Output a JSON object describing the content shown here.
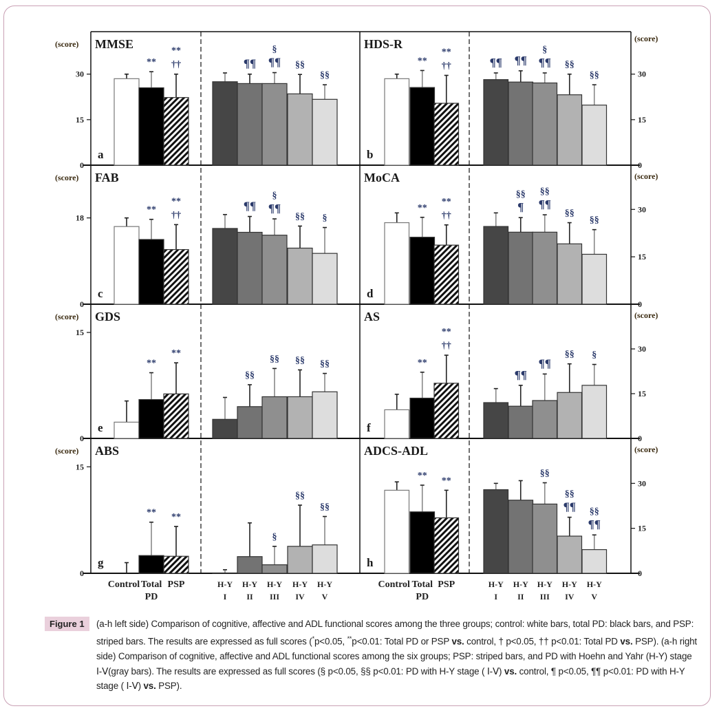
{
  "figure": {
    "y_unit_label": "(score)",
    "groups": [
      [
        "Control"
      ],
      [
        "Total",
        "PD"
      ],
      [
        "PSP"
      ],
      [
        "H-Y",
        "I"
      ],
      [
        "H-Y",
        "II"
      ],
      [
        "H-Y",
        "III"
      ],
      [
        "H-Y",
        "IV"
      ],
      [
        "H-Y",
        "V"
      ]
    ],
    "colors": [
      "#ffffff",
      "#000000",
      "striped",
      "#464646",
      "#737373",
      "#8f8f8f",
      "#b2b2b2",
      "#dddddd"
    ]
  },
  "chart_data": [
    {
      "type": "bar",
      "panel": "a",
      "title": "MMSE",
      "ylim": [
        0,
        44
      ],
      "yticks": [
        0,
        15,
        30
      ],
      "values": [
        28.5,
        25.5,
        22.3,
        27.5,
        26.9,
        26.9,
        23.5,
        21.7
      ],
      "error_upper": [
        30,
        30.8,
        30,
        30.4,
        30,
        30.5,
        29.9,
        26.5
      ],
      "annotations": [
        [],
        [
          "**"
        ],
        [
          "**",
          "††"
        ],
        [],
        [
          "¶¶"
        ],
        [
          "§",
          "¶¶"
        ],
        [
          "§§"
        ],
        [
          "§§"
        ]
      ]
    },
    {
      "type": "bar",
      "panel": "b",
      "title": "HDS-R",
      "ylim": [
        0,
        44
      ],
      "yticks": [
        0,
        15,
        30
      ],
      "values": [
        28.5,
        25.6,
        20.4,
        28.2,
        27.4,
        27.1,
        23.2,
        19.8
      ],
      "error_upper": [
        30,
        31.2,
        29.6,
        30.4,
        31.1,
        30.4,
        30,
        26.5
      ],
      "annotations": [
        [],
        [
          "**"
        ],
        [
          "**",
          "††"
        ],
        [
          "¶¶"
        ],
        [
          "¶¶"
        ],
        [
          "§",
          "¶¶"
        ],
        [
          "§§"
        ],
        [
          "§§"
        ]
      ]
    },
    {
      "type": "bar",
      "panel": "c",
      "title": "FAB",
      "ylim": [
        0,
        29
      ],
      "yticks": [
        0,
        18
      ],
      "values": [
        16.2,
        13.5,
        11.4,
        15.8,
        15,
        14.4,
        11.7,
        10.6
      ],
      "error_upper": [
        18,
        17.7,
        16.6,
        18.7,
        18.3,
        17.8,
        16.3,
        16
      ],
      "annotations": [
        [],
        [
          "**"
        ],
        [
          "**",
          "††"
        ],
        [],
        [
          "¶¶"
        ],
        [
          "§",
          "¶¶"
        ],
        [
          "§§"
        ],
        [
          "§"
        ]
      ]
    },
    {
      "type": "bar",
      "panel": "d",
      "title": "MoCA",
      "ylim": [
        0,
        44
      ],
      "yticks": [
        0,
        15,
        30
      ],
      "values": [
        25.8,
        21.2,
        18.7,
        24.6,
        22.8,
        22.8,
        19.1,
        15.8
      ],
      "error_upper": [
        28.9,
        27.5,
        25.1,
        28.9,
        27.4,
        28.3,
        25.8,
        23.6
      ],
      "annotations": [
        [],
        [
          "**"
        ],
        [
          "**",
          "††"
        ],
        [],
        [
          "§§",
          "¶"
        ],
        [
          "§§",
          "¶¶"
        ],
        [
          "§§"
        ],
        [
          "§§"
        ]
      ]
    },
    {
      "type": "bar",
      "panel": "e",
      "title": "GDS",
      "ylim": [
        0,
        19
      ],
      "yticks": [
        0,
        15
      ],
      "values": [
        2.3,
        5.5,
        6.3,
        2.7,
        4.5,
        5.9,
        5.9,
        6.6
      ],
      "error_upper": [
        5.3,
        9.3,
        10.7,
        5.8,
        7.6,
        9.9,
        9.7,
        9.2
      ],
      "annotations": [
        [],
        [
          "**"
        ],
        [
          "**"
        ],
        [],
        [
          "§§"
        ],
        [
          "§§"
        ],
        [
          "§§"
        ],
        [
          "§§"
        ]
      ]
    },
    {
      "type": "bar",
      "panel": "f",
      "title": "AS",
      "ylim": [
        0,
        45
      ],
      "yticks": [
        0,
        15,
        30
      ],
      "values": [
        9.6,
        13.5,
        18.5,
        12,
        10.8,
        12.7,
        15.4,
        17.8
      ],
      "error_upper": [
        14.8,
        22.2,
        27.9,
        16.7,
        17.8,
        21.6,
        25,
        24.8
      ],
      "annotations": [
        [],
        [
          "**"
        ],
        [
          "**",
          "††"
        ],
        [],
        [
          "¶¶"
        ],
        [
          "¶¶"
        ],
        [
          "§§"
        ],
        [
          "§"
        ]
      ]
    },
    {
      "type": "bar",
      "panel": "g",
      "title": "ABS",
      "ylim": [
        0,
        19
      ],
      "yticks": [
        0,
        15
      ],
      "values": [
        0,
        2.5,
        2.4,
        0.05,
        2.35,
        1.2,
        3.8,
        4
      ],
      "error_upper": [
        1.5,
        7.2,
        6.6,
        0.5,
        7.1,
        3.8,
        9.6,
        8
      ],
      "annotations": [
        [],
        [
          "**"
        ],
        [
          "**"
        ],
        [],
        [],
        [
          "§"
        ],
        [
          "§§"
        ],
        [
          "§§"
        ]
      ]
    },
    {
      "type": "bar",
      "panel": "h",
      "title": "ADCS-ADL",
      "ylim": [
        0,
        45
      ],
      "yticks": [
        0,
        15,
        30
      ],
      "values": [
        27.7,
        20.5,
        18.5,
        27.9,
        24.4,
        23.1,
        12.4,
        7.9
      ],
      "error_upper": [
        30.5,
        29.4,
        27.7,
        30,
        30.9,
        30.2,
        18.7,
        12.8
      ],
      "annotations": [
        [],
        [
          "**"
        ],
        [
          "**"
        ],
        [],
        [],
        [
          "§§"
        ],
        [
          "§§",
          "¶¶"
        ],
        [
          "§§",
          "¶¶"
        ]
      ]
    }
  ],
  "caption": {
    "label": "Figure 1",
    "segments": [
      {
        "t": "(a-h left side) Comparison of cognitive, affective and ADL functional scores among the three groups; control: white bars, total PD: black bars, and PSP: striped bars. The results are expressed as full scores ("
      },
      {
        "t": "*",
        "sup": true
      },
      {
        "t": "p<0.05, "
      },
      {
        "t": "**",
        "sup": true
      },
      {
        "t": "p<0.01: Total PD or PSP "
      },
      {
        "t": "vs.",
        "b": true
      },
      {
        "t": " control, † p<0.05, †† p<0.01: Total PD "
      },
      {
        "t": "vs.",
        "b": true
      },
      {
        "t": " PSP). (a-h right side) Comparison of cognitive, affective and ADL functional scores among the six groups; PSP: striped bars, and PD with Hoehn and Yahr (H-Y) stage Ⅰ-Ⅴ(gray bars). The results are expressed as full scores (§ p<0.05, §§ p<0.01: PD with H-Y stage ( Ⅰ-Ⅴ) "
      },
      {
        "t": "vs.",
        "b": true
      },
      {
        "t": " control, ¶ p<0.05, ¶¶ p<0.01: PD with H-Y stage ( Ⅰ-Ⅴ) "
      },
      {
        "t": "vs.",
        "b": true
      },
      {
        "t": " PSP)."
      }
    ]
  }
}
